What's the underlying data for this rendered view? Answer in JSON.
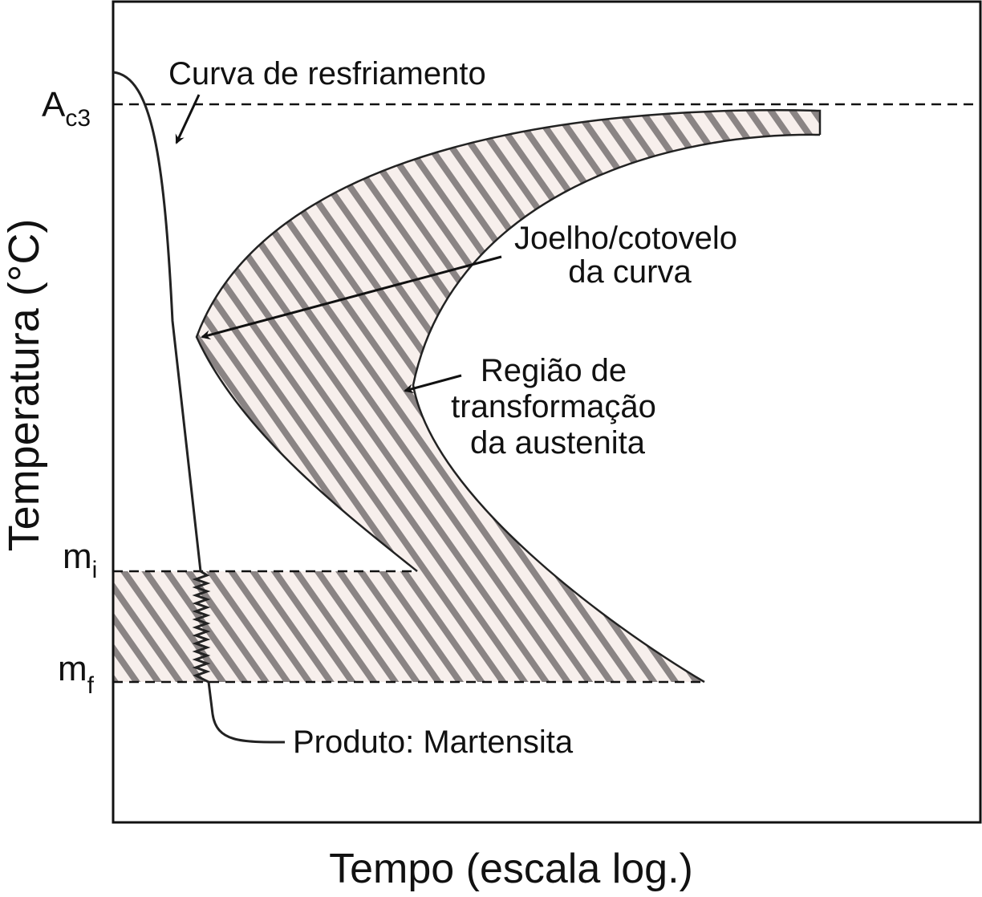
{
  "axes": {
    "x_label": "Tempo (escala log.)",
    "y_label": "Temperatura (°C)"
  },
  "levels": [
    {
      "symbol": "A",
      "subscript": "c3"
    },
    {
      "symbol": "m",
      "subscript": "i"
    },
    {
      "symbol": "m",
      "subscript": "f"
    }
  ],
  "annotations": {
    "cooling_curve": [
      "Curva de resfriamento"
    ],
    "knee": [
      "Joelho/cotovelo",
      "da curva"
    ],
    "region": [
      "Região de",
      "transformação",
      "da austenita"
    ],
    "product": [
      "Produto: Martensita"
    ]
  }
}
